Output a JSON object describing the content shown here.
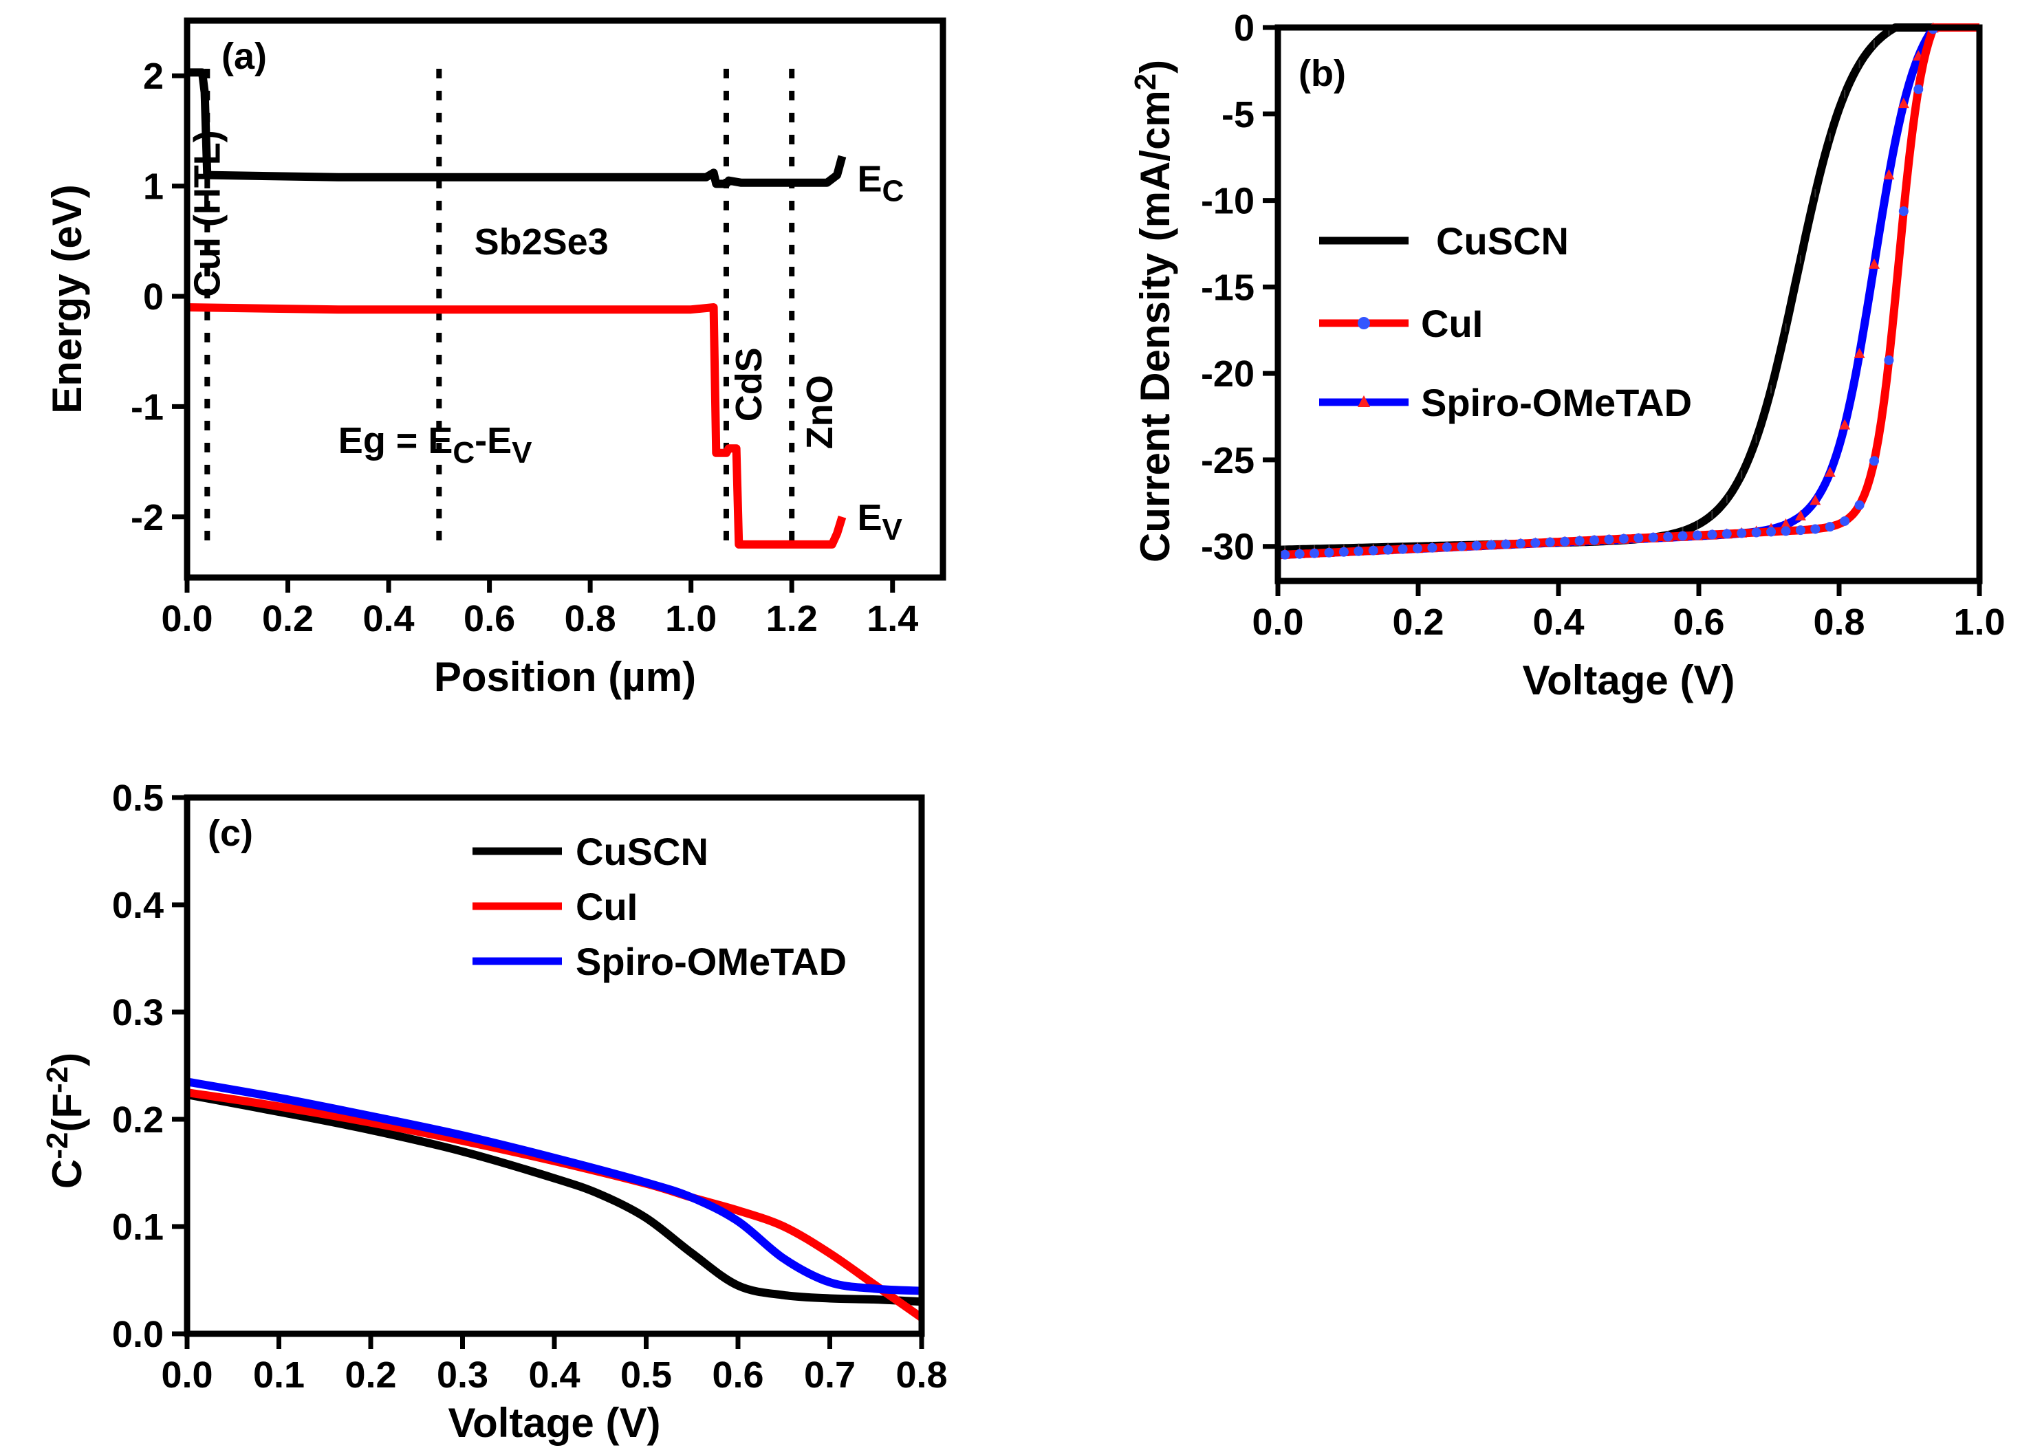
{
  "chart_data": [
    {
      "id": "a",
      "type": "line",
      "panel_label": "(a)",
      "xlabel": "Position (µm)",
      "ylabel": "Energy (eV)",
      "xlim": [
        0,
        1.5
      ],
      "ylim": [
        -2.55,
        2.5
      ],
      "x_ticks": [
        0.0,
        0.2,
        0.4,
        0.6,
        0.8,
        1.0,
        1.2,
        1.4
      ],
      "x_tick_labels": [
        "0.0",
        "0.2",
        "0.4",
        "0.6",
        "0.8",
        "1.0",
        "1.2",
        "1.4"
      ],
      "y_ticks": [
        2,
        1,
        0,
        -1,
        -2
      ],
      "y_tick_labels": [
        "2",
        "1",
        "0",
        "-1",
        "-2"
      ],
      "series": [
        {
          "name": "E_C",
          "color": "#000000",
          "points": [
            [
              0.0,
              2.03
            ],
            [
              0.03,
              2.03
            ],
            [
              0.035,
              1.85
            ],
            [
              0.04,
              1.1
            ],
            [
              0.3,
              1.08
            ],
            [
              0.8,
              1.08
            ],
            [
              1.03,
              1.08
            ],
            [
              1.045,
              1.12
            ],
            [
              1.05,
              1.02
            ],
            [
              1.07,
              1.02
            ],
            [
              1.075,
              1.05
            ],
            [
              1.1,
              1.03
            ],
            [
              1.15,
              1.03
            ],
            [
              1.27,
              1.03
            ],
            [
              1.29,
              1.1
            ],
            [
              1.3,
              1.27
            ]
          ]
        },
        {
          "name": "E_V",
          "color": "#ff0000",
          "points": [
            [
              0.0,
              -0.1
            ],
            [
              0.3,
              -0.12
            ],
            [
              1.0,
              -0.12
            ],
            [
              1.045,
              -0.1
            ],
            [
              1.05,
              -1.42
            ],
            [
              1.07,
              -1.42
            ],
            [
              1.075,
              -1.38
            ],
            [
              1.09,
              -1.38
            ],
            [
              1.095,
              -2.25
            ],
            [
              1.28,
              -2.25
            ],
            [
              1.29,
              -2.15
            ],
            [
              1.3,
              -2.0
            ]
          ]
        }
      ],
      "boundaries": [
        0.04,
        0.5,
        1.07,
        1.2
      ],
      "region_labels": [
        {
          "text": "CuI (HTL)",
          "x": 0.065,
          "y": 0.75,
          "rotate": -90
        },
        {
          "text": "Sb2Se3",
          "x": 0.57,
          "y": 0.38,
          "rotate": 0
        },
        {
          "text": "CdS",
          "x": 1.14,
          "y": -0.8,
          "rotate": -90
        },
        {
          "text": "ZnO",
          "x": 1.28,
          "y": -1.05,
          "rotate": -90
        }
      ],
      "annotations": {
        "ec_label": {
          "main": "E",
          "sub": "C",
          "x": 1.33,
          "y": 0.95
        },
        "ev_label": {
          "main": "E",
          "sub": "V",
          "x": 1.33,
          "y": -2.12
        },
        "eg_eq": {
          "p1": "Eg = E",
          "s1": "C",
          "p2": "-E",
          "s2": "V",
          "x": 0.3,
          "y": -1.42
        }
      }
    },
    {
      "id": "b",
      "type": "line",
      "panel_label": "(b)",
      "xlabel": "Voltage (V)",
      "ylabel": {
        "main": "Current Density (mA/cm",
        "sup": "2",
        "end": ")"
      },
      "xlim": [
        0,
        1.0
      ],
      "ylim": [
        -32,
        0
      ],
      "x_ticks": [
        0.0,
        0.2,
        0.4,
        0.6,
        0.8,
        1.0
      ],
      "x_tick_labels": [
        "0.0",
        "0.2",
        "0.4",
        "0.6",
        "0.8",
        "1.0"
      ],
      "y_ticks": [
        0,
        -5,
        -10,
        -15,
        -20,
        -25,
        -30
      ],
      "y_tick_labels": [
        "0",
        "-5",
        "-10",
        "-15",
        "-20",
        "-25",
        "-30"
      ],
      "series": [
        {
          "name": "CuSCN",
          "color": "#000000",
          "jsc": -30.2,
          "voc": 0.88,
          "v0": 0.74,
          "w": 0.04,
          "marker": "none",
          "marker_color": "#000000"
        },
        {
          "name": "CuI",
          "color": "#ff0000",
          "jsc": -30.5,
          "voc": 0.935,
          "v0": 0.885,
          "w": 0.018,
          "marker": "circle",
          "marker_color": "#3355ff"
        },
        {
          "name": "Spiro-OMeTAD",
          "color": "#0000ff",
          "jsc": -30.5,
          "voc": 0.935,
          "v0": 0.85,
          "w": 0.03,
          "marker": "triangle",
          "marker_color": "#ff2020"
        }
      ],
      "legend": {
        "position": "middle-left",
        "entries": [
          "CuSCN",
          "CuI",
          "Spiro-OMeTAD"
        ]
      }
    },
    {
      "id": "c",
      "type": "line",
      "panel_label": "(c)",
      "xlabel": "Voltage (V)",
      "ylabel": {
        "main": "C",
        "sup1": "-2",
        "mid": "(F",
        "sup2": "-2",
        "end": ")"
      },
      "xlim": [
        0,
        0.8
      ],
      "ylim": [
        0,
        0.5
      ],
      "x_ticks": [
        0.0,
        0.1,
        0.2,
        0.3,
        0.4,
        0.5,
        0.6,
        0.7,
        0.8
      ],
      "x_tick_labels": [
        "0.0",
        "0.1",
        "0.2",
        "0.3",
        "0.4",
        "0.5",
        "0.6",
        "0.7",
        "0.8"
      ],
      "y_ticks": [
        0.0,
        0.1,
        0.2,
        0.3,
        0.4,
        0.5
      ],
      "y_tick_labels": [
        "0.0",
        "0.1",
        "0.2",
        "0.3",
        "0.4",
        "0.5"
      ],
      "series": [
        {
          "name": "CuSCN",
          "color": "#000000",
          "points": [
            [
              0.0,
              0.223
            ],
            [
              0.1,
              0.207
            ],
            [
              0.2,
              0.19
            ],
            [
              0.3,
              0.17
            ],
            [
              0.4,
              0.145
            ],
            [
              0.45,
              0.13
            ],
            [
              0.5,
              0.108
            ],
            [
              0.55,
              0.075
            ],
            [
              0.6,
              0.045
            ],
            [
              0.65,
              0.036
            ],
            [
              0.7,
              0.033
            ],
            [
              0.75,
              0.032
            ],
            [
              0.8,
              0.03
            ]
          ]
        },
        {
          "name": "CuI",
          "color": "#ff0000",
          "points": [
            [
              0.0,
              0.225
            ],
            [
              0.1,
              0.212
            ],
            [
              0.2,
              0.197
            ],
            [
              0.3,
              0.18
            ],
            [
              0.4,
              0.161
            ],
            [
              0.5,
              0.14
            ],
            [
              0.55,
              0.127
            ],
            [
              0.6,
              0.115
            ],
            [
              0.65,
              0.1
            ],
            [
              0.7,
              0.075
            ],
            [
              0.75,
              0.045
            ],
            [
              0.8,
              0.015
            ]
          ]
        },
        {
          "name": "Spiro-OMeTAD",
          "color": "#0000ff",
          "points": [
            [
              0.0,
              0.235
            ],
            [
              0.1,
              0.22
            ],
            [
              0.2,
              0.203
            ],
            [
              0.3,
              0.185
            ],
            [
              0.4,
              0.164
            ],
            [
              0.5,
              0.141
            ],
            [
              0.55,
              0.127
            ],
            [
              0.6,
              0.105
            ],
            [
              0.65,
              0.07
            ],
            [
              0.7,
              0.048
            ],
            [
              0.75,
              0.042
            ],
            [
              0.8,
              0.04
            ]
          ]
        }
      ],
      "legend": {
        "position": "top-center",
        "entries": [
          "CuSCN",
          "CuI",
          "Spiro-OMeTAD"
        ]
      }
    }
  ]
}
